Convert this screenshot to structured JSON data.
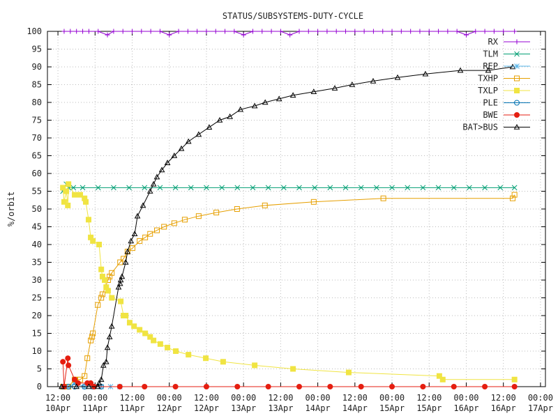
{
  "chart_data": {
    "type": "line",
    "title": "STATUS/SUBSYSTEMS-DUTY-CYCLE",
    "xlabel": "",
    "ylabel": "%/orbit",
    "x_units": "hours since 10Apr 00:00",
    "xlim": [
      8.6,
      169.6
    ],
    "ylim": [
      0,
      100
    ],
    "grid": true,
    "legend_position": "top-right",
    "y_ticks": [
      0,
      5,
      10,
      15,
      20,
      25,
      30,
      35,
      40,
      45,
      50,
      55,
      60,
      65,
      70,
      75,
      80,
      85,
      90,
      95,
      100
    ],
    "x_ticks": [
      {
        "h": 12,
        "time": "12:00",
        "date": "10Apr"
      },
      {
        "h": 24,
        "time": "00:00",
        "date": "11Apr"
      },
      {
        "h": 36,
        "time": "12:00",
        "date": "11Apr"
      },
      {
        "h": 48,
        "time": "00:00",
        "date": "12Apr"
      },
      {
        "h": 60,
        "time": "12:00",
        "date": "12Apr"
      },
      {
        "h": 72,
        "time": "00:00",
        "date": "13Apr"
      },
      {
        "h": 84,
        "time": "12:00",
        "date": "13Apr"
      },
      {
        "h": 96,
        "time": "00:00",
        "date": "14Apr"
      },
      {
        "h": 108,
        "time": "12:00",
        "date": "14Apr"
      },
      {
        "h": 120,
        "time": "00:00",
        "date": "15Apr"
      },
      {
        "h": 132,
        "time": "12:00",
        "date": "15Apr"
      },
      {
        "h": 144,
        "time": "00:00",
        "date": "16Apr"
      },
      {
        "h": 156,
        "time": "12:00",
        "date": "16Apr"
      },
      {
        "h": 168,
        "time": "00:00",
        "date": "17Apr"
      }
    ],
    "series": [
      {
        "name": "RX",
        "color": "#9400d3",
        "marker": "plus",
        "x": [
          14,
          16,
          18,
          20,
          22,
          25,
          28,
          30,
          33,
          36,
          39,
          42,
          45,
          48,
          51,
          54,
          57,
          60,
          63,
          66,
          69,
          72,
          75,
          78,
          81,
          84,
          87,
          90,
          93,
          96,
          99,
          102,
          105,
          108,
          111,
          114,
          117,
          120,
          123,
          126,
          129,
          132,
          135,
          138,
          141,
          144,
          147,
          150,
          153,
          156,
          159.6
        ],
        "y": [
          100,
          100,
          100,
          100,
          100,
          100,
          99,
          100,
          100,
          100,
          100,
          100,
          100,
          99,
          100,
          100,
          100,
          100,
          100,
          100,
          100,
          99,
          100,
          100,
          100,
          100,
          99,
          100,
          100,
          100,
          100,
          100,
          100,
          100,
          100,
          100,
          100,
          100,
          100,
          100,
          100,
          100,
          100,
          100,
          100,
          99,
          100,
          100,
          100,
          100,
          100
        ]
      },
      {
        "name": "TLM",
        "color": "#009e73",
        "marker": "x",
        "x": [
          13.6,
          14.7,
          15.4,
          17,
          20,
          25,
          30,
          35,
          40,
          45,
          50,
          55,
          60,
          65,
          70,
          75,
          80,
          85,
          90,
          95,
          100,
          105,
          110,
          115,
          120,
          125,
          130,
          135,
          140,
          145,
          150,
          155,
          159.6
        ],
        "y": [
          55,
          57,
          56,
          56,
          56,
          56,
          56,
          56,
          56,
          56,
          56,
          56,
          56,
          56,
          56,
          56,
          56,
          56,
          56,
          56,
          56,
          56,
          56,
          56,
          56,
          56,
          56,
          56,
          56,
          56,
          56,
          56,
          56
        ]
      },
      {
        "name": "REP",
        "color": "#56b4e9",
        "marker": "star",
        "x": [
          13.6,
          15.4,
          17.4,
          20.6,
          23.3,
          26,
          29,
          32
        ],
        "y": [
          0,
          0,
          1,
          0,
          0,
          0,
          0,
          0
        ]
      },
      {
        "name": "TXHP",
        "color": "#e69f00",
        "marker": "square-open",
        "x": [
          13.6,
          15.4,
          17.4,
          19.2,
          20.6,
          21.5,
          22.6,
          23,
          23.3,
          24.9,
          26,
          26.4,
          28.2,
          28.7,
          29.4,
          32.1,
          33.2,
          34.5,
          36.1,
          38.4,
          40.2,
          41.8,
          44,
          46.3,
          49.6,
          53,
          57.5,
          63.2,
          69.9,
          78.9,
          94.7,
          117.2,
          159,
          159.6
        ],
        "y": [
          0,
          0,
          2,
          2,
          3,
          8,
          13,
          14,
          15,
          23,
          25,
          26,
          30,
          31,
          32,
          35,
          36,
          38,
          39,
          41,
          42,
          43,
          44,
          45,
          46,
          47,
          48,
          49,
          50,
          51,
          52,
          53,
          53,
          54
        ]
      },
      {
        "name": "TXLP",
        "color": "#f0e442",
        "marker": "square-filled",
        "x": [
          13.6,
          14,
          14.7,
          15.2,
          15.4,
          17.4,
          19.2,
          20.6,
          21,
          21.9,
          22.6,
          23.3,
          25.3,
          26,
          26.4,
          27.1,
          27.6,
          28.2,
          29.4,
          32.3,
          33.2,
          33.9,
          35.2,
          36.6,
          38.4,
          40.2,
          41.8,
          42.9,
          45.1,
          47.4,
          50.1,
          54.2,
          59.8,
          65.4,
          75.6,
          88,
          106,
          135.3,
          136.4,
          159.6
        ],
        "y": [
          56,
          52,
          55,
          51,
          57,
          54,
          54,
          53,
          52,
          47,
          42,
          41,
          40,
          33,
          31,
          30,
          28,
          27,
          25,
          24,
          20,
          20,
          18,
          17,
          16,
          15,
          14,
          13,
          12,
          11,
          10,
          9,
          8,
          7,
          6,
          5,
          4,
          3,
          2,
          2
        ]
      },
      {
        "name": "PLE",
        "color": "#0072b2",
        "marker": "circle-open",
        "x": [
          13.6,
          15.4,
          17.4,
          20.6,
          23.3,
          26
        ],
        "y": [
          0,
          0,
          0,
          0,
          0,
          0
        ]
      },
      {
        "name": "BWE",
        "color": "#e51e10",
        "marker": "circle-filled",
        "x": [
          13.6,
          14,
          15.2,
          15.4,
          17.4,
          18.5,
          21.5,
          22.6,
          23.7,
          32,
          40,
          50,
          60,
          70,
          80,
          90,
          100,
          110,
          120,
          130,
          140,
          150,
          159.6
        ],
        "y": [
          7,
          0,
          8,
          6,
          2,
          1,
          1,
          1,
          0,
          0,
          0,
          0,
          0,
          0,
          0,
          0,
          0,
          0,
          0,
          0,
          0,
          0,
          0
        ]
      },
      {
        "name": "BAT>BUS",
        "color": "#000000",
        "marker": "triangle-open",
        "x": [
          13.2,
          18,
          22,
          24.9,
          25.3,
          26,
          26.7,
          27.6,
          28,
          28.7,
          29.4,
          31.6,
          32.1,
          32.3,
          32.7,
          33.9,
          34.5,
          35.6,
          36.8,
          37.7,
          39.5,
          41.8,
          42.9,
          44,
          45.6,
          47.4,
          49.6,
          51.9,
          54.2,
          57.5,
          60.9,
          64.3,
          67.6,
          71,
          75.6,
          79,
          83.5,
          88,
          94.7,
          101.5,
          107.1,
          113.9,
          121.8,
          130.8,
          142.1,
          151.1,
          159
        ],
        "y": [
          0,
          0,
          0,
          0,
          1,
          2,
          6,
          7,
          11,
          14,
          17,
          28,
          29,
          30,
          31,
          35,
          38,
          41,
          43,
          48,
          51,
          55,
          57,
          59,
          61,
          63,
          65,
          67,
          69,
          71,
          73,
          75,
          76,
          78,
          79,
          80,
          81,
          82,
          83,
          84,
          85,
          86,
          87,
          88,
          89,
          89,
          90
        ]
      }
    ]
  }
}
